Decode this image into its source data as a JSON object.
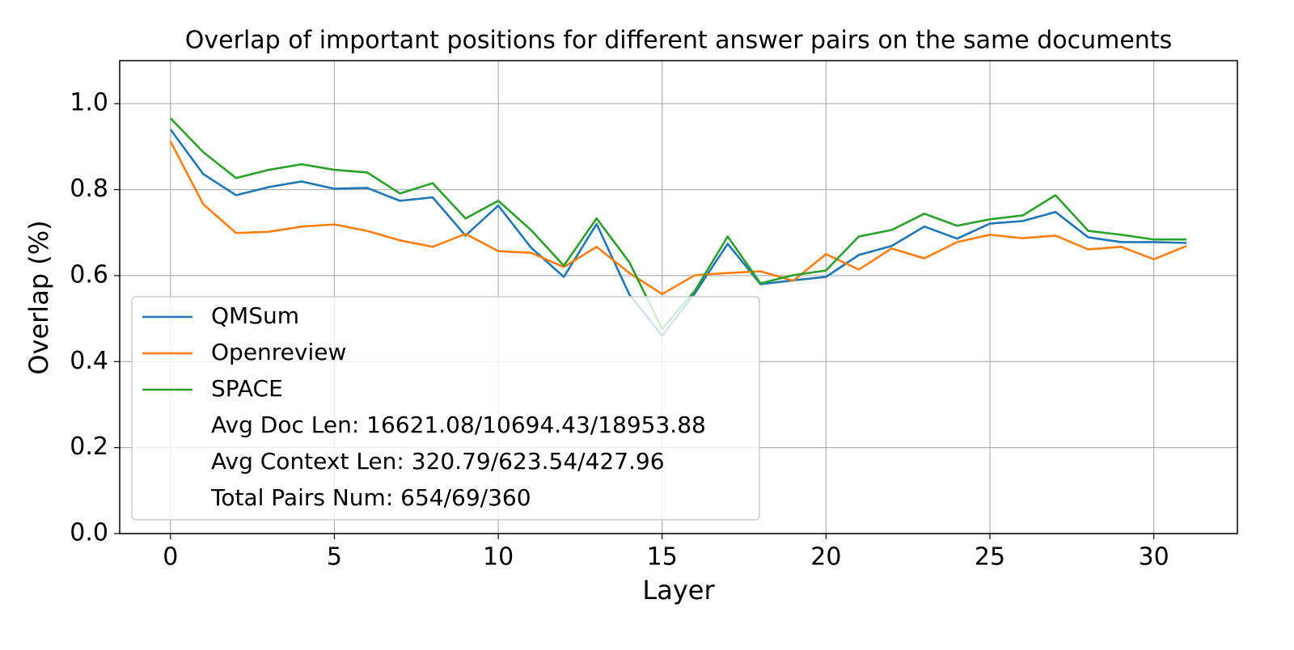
{
  "chart_data": {
    "type": "line",
    "title": "Overlap of important positions for different answer pairs on the same documents",
    "x_label": "Layer",
    "y_label": "Overlap (%)",
    "x": [
      0,
      1,
      2,
      3,
      4,
      5,
      6,
      7,
      8,
      9,
      10,
      11,
      12,
      13,
      14,
      15,
      16,
      17,
      18,
      19,
      20,
      21,
      22,
      23,
      24,
      25,
      26,
      27,
      28,
      29,
      30,
      31
    ],
    "series": [
      {
        "name": "QMSum",
        "color": "#1f77b4",
        "values": [
          0.94,
          0.836,
          0.787,
          0.806,
          0.819,
          0.802,
          0.804,
          0.774,
          0.782,
          0.693,
          0.763,
          0.665,
          0.597,
          0.72,
          0.556,
          0.46,
          0.559,
          0.674,
          0.58,
          0.589,
          0.597,
          0.648,
          0.669,
          0.714,
          0.686,
          0.721,
          0.727,
          0.748,
          0.689,
          0.678,
          0.678,
          0.676
        ]
      },
      {
        "name": "Openreview",
        "color": "#ff7f0e",
        "values": [
          0.912,
          0.766,
          0.699,
          0.702,
          0.714,
          0.719,
          0.704,
          0.682,
          0.667,
          0.697,
          0.657,
          0.653,
          0.62,
          0.667,
          0.606,
          0.557,
          0.601,
          0.606,
          0.61,
          0.588,
          0.65,
          0.614,
          0.663,
          0.64,
          0.678,
          0.695,
          0.687,
          0.693,
          0.661,
          0.667,
          0.638,
          0.669
        ]
      },
      {
        "name": "SPACE",
        "color": "#2ca02c",
        "values": [
          0.966,
          0.887,
          0.827,
          0.846,
          0.859,
          0.846,
          0.84,
          0.791,
          0.815,
          0.733,
          0.774,
          0.706,
          0.623,
          0.733,
          0.631,
          0.476,
          0.565,
          0.691,
          0.582,
          0.601,
          0.612,
          0.691,
          0.706,
          0.744,
          0.716,
          0.731,
          0.74,
          0.787,
          0.704,
          0.695,
          0.684,
          0.684
        ]
      }
    ],
    "legend_notes": [
      "Avg Doc Len: 16621.08/10694.43/18953.88",
      "Avg Context Len: 320.79/623.54/427.96",
      "Total Pairs Num: 654/69/360"
    ],
    "legend_position": "lower left",
    "xlim": [
      -1.55,
      32.55
    ],
    "xticks": [
      0,
      5,
      10,
      15,
      20,
      25,
      30
    ],
    "ylim": [
      0,
      1.1
    ],
    "yticks": [
      {
        "value": 0,
        "label": "0.0"
      },
      0.2,
      0.4,
      0.6,
      0.8,
      {
        "value": 1,
        "label": "1.0"
      }
    ],
    "grid": true
  }
}
